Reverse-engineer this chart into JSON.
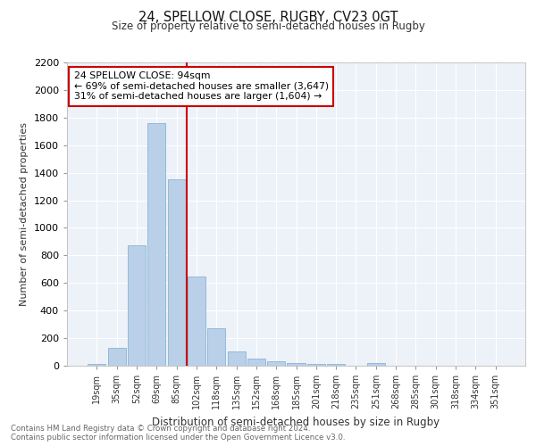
{
  "title": "24, SPELLOW CLOSE, RUGBY, CV23 0GT",
  "subtitle": "Size of property relative to semi-detached houses in Rugby",
  "xlabel": "Distribution of semi-detached houses by size in Rugby",
  "ylabel": "Number of semi-detached properties",
  "categories": [
    "19sqm",
    "35sqm",
    "52sqm",
    "69sqm",
    "85sqm",
    "102sqm",
    "118sqm",
    "135sqm",
    "152sqm",
    "168sqm",
    "185sqm",
    "201sqm",
    "218sqm",
    "235sqm",
    "251sqm",
    "268sqm",
    "285sqm",
    "301sqm",
    "318sqm",
    "334sqm",
    "351sqm"
  ],
  "values": [
    15,
    130,
    875,
    1760,
    1350,
    645,
    270,
    105,
    50,
    30,
    20,
    15,
    10,
    0,
    20,
    0,
    0,
    0,
    0,
    0,
    0
  ],
  "bar_color": "#bad0e8",
  "bar_edge_color": "#7aaad0",
  "vline_color": "#cc0000",
  "annotation_text": "24 SPELLOW CLOSE: 94sqm\n← 69% of semi-detached houses are smaller (3,647)\n31% of semi-detached houses are larger (1,604) →",
  "annotation_box_color": "#ffffff",
  "annotation_box_edge": "#cc0000",
  "footer_text": "Contains HM Land Registry data © Crown copyright and database right 2024.\nContains public sector information licensed under the Open Government Licence v3.0.",
  "bg_color": "#edf2f9",
  "grid_color": "#ffffff",
  "ylim": [
    0,
    2200
  ],
  "yticks": [
    0,
    200,
    400,
    600,
    800,
    1000,
    1200,
    1400,
    1600,
    1800,
    2000,
    2200
  ]
}
